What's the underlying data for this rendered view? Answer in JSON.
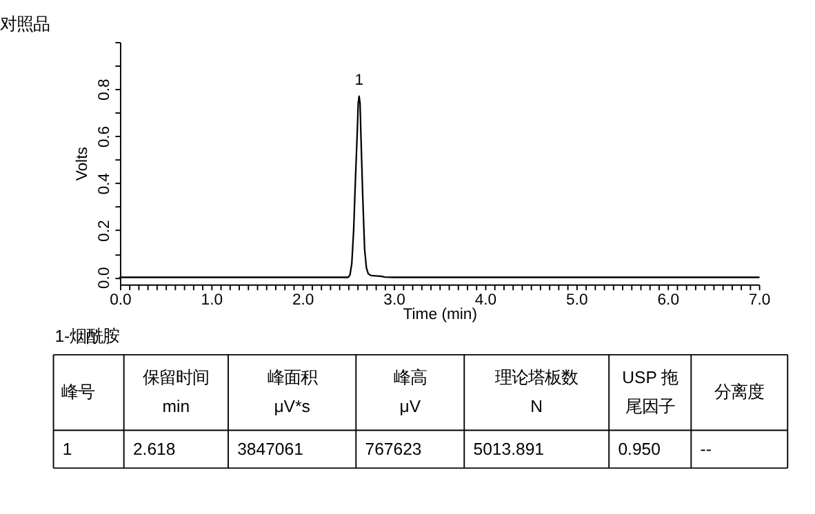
{
  "chart_data": {
    "type": "line",
    "title": "对照品",
    "xlabel": "Time (min)",
    "ylabel": "Volts",
    "x": [
      0,
      1.0,
      2.0,
      2.5,
      2.52,
      2.54,
      2.56,
      2.58,
      2.6,
      2.61,
      2.62,
      2.63,
      2.64,
      2.66,
      2.68,
      2.7,
      2.72,
      2.75,
      2.8,
      2.87,
      2.9,
      3.0,
      4.0,
      5.0,
      6.0,
      7.0
    ],
    "series": [
      {
        "color": "#000000",
        "values": [
          0,
          0,
          0,
          0,
          0.01,
          0.06,
          0.2,
          0.42,
          0.62,
          0.74,
          0.77,
          0.74,
          0.6,
          0.34,
          0.12,
          0.04,
          0.015,
          0.008,
          0.006,
          0.004,
          0.001,
          0,
          0,
          0,
          0,
          0
        ]
      }
    ],
    "xlim": [
      0,
      7.0
    ],
    "ylim": [
      -0.03,
      1.0
    ],
    "xticks": [
      {
        "value": 0,
        "label": "0.0"
      },
      {
        "value": 0.1,
        "label": null
      },
      {
        "value": 0.2,
        "label": null
      },
      {
        "value": 0.3,
        "label": null
      },
      {
        "value": 0.4,
        "label": null
      },
      {
        "value": 0.5,
        "label": null
      },
      {
        "value": 0.6,
        "label": null
      },
      {
        "value": 0.7,
        "label": null
      },
      {
        "value": 0.8,
        "label": null
      },
      {
        "value": 0.9,
        "label": null
      },
      {
        "value": 1,
        "label": "1.0"
      },
      {
        "value": 1.1,
        "label": null
      },
      {
        "value": 1.2,
        "label": null
      },
      {
        "value": 1.3,
        "label": null
      },
      {
        "value": 1.4,
        "label": null
      },
      {
        "value": 1.5,
        "label": null
      },
      {
        "value": 1.6,
        "label": null
      },
      {
        "value": 1.7,
        "label": null
      },
      {
        "value": 1.8,
        "label": null
      },
      {
        "value": 1.9,
        "label": null
      },
      {
        "value": 2,
        "label": "2.0"
      },
      {
        "value": 2.1,
        "label": null
      },
      {
        "value": 2.2,
        "label": null
      },
      {
        "value": 2.3,
        "label": null
      },
      {
        "value": 2.4,
        "label": null
      },
      {
        "value": 2.5,
        "label": null
      },
      {
        "value": 2.6,
        "label": null
      },
      {
        "value": 2.7,
        "label": null
      },
      {
        "value": 2.8,
        "label": null
      },
      {
        "value": 2.9,
        "label": null
      },
      {
        "value": 3,
        "label": "3.0"
      },
      {
        "value": 3.1,
        "label": null
      },
      {
        "value": 3.2,
        "label": null
      },
      {
        "value": 3.3,
        "label": null
      },
      {
        "value": 3.4,
        "label": null
      },
      {
        "value": 3.5,
        "label": null
      },
      {
        "value": 3.6,
        "label": null
      },
      {
        "value": 3.7,
        "label": null
      },
      {
        "value": 3.8,
        "label": null
      },
      {
        "value": 3.9,
        "label": null
      },
      {
        "value": 4,
        "label": "4.0"
      },
      {
        "value": 4.1,
        "label": null
      },
      {
        "value": 4.2,
        "label": null
      },
      {
        "value": 4.3,
        "label": null
      },
      {
        "value": 4.4,
        "label": null
      },
      {
        "value": 4.5,
        "label": null
      },
      {
        "value": 4.6,
        "label": null
      },
      {
        "value": 4.7,
        "label": null
      },
      {
        "value": 4.8,
        "label": null
      },
      {
        "value": 4.9,
        "label": null
      },
      {
        "value": 5,
        "label": "5.0"
      },
      {
        "value": 5.1,
        "label": null
      },
      {
        "value": 5.2,
        "label": null
      },
      {
        "value": 5.3,
        "label": null
      },
      {
        "value": 5.4,
        "label": null
      },
      {
        "value": 5.5,
        "label": null
      },
      {
        "value": 5.6,
        "label": null
      },
      {
        "value": 5.7,
        "label": null
      },
      {
        "value": 5.8,
        "label": null
      },
      {
        "value": 5.9,
        "label": null
      },
      {
        "value": 6,
        "label": "6.0"
      },
      {
        "value": 6.1,
        "label": null
      },
      {
        "value": 6.2,
        "label": null
      },
      {
        "value": 6.3,
        "label": null
      },
      {
        "value": 6.4,
        "label": null
      },
      {
        "value": 6.5,
        "label": null
      },
      {
        "value": 6.6,
        "label": null
      },
      {
        "value": 6.7,
        "label": null
      },
      {
        "value": 6.8,
        "label": null
      },
      {
        "value": 6.9,
        "label": null
      },
      {
        "value": 7,
        "label": "7.0"
      }
    ],
    "yticks": [
      {
        "value": 0,
        "label": "0.0"
      },
      {
        "value": 0.1,
        "label": null
      },
      {
        "value": 0.2,
        "label": "0.2"
      },
      {
        "value": 0.3,
        "label": null
      },
      {
        "value": 0.4,
        "label": "0.4"
      },
      {
        "value": 0.5,
        "label": null
      },
      {
        "value": 0.6,
        "label": "0.6"
      },
      {
        "value": 0.7,
        "label": null
      },
      {
        "value": 0.8,
        "label": "0.8"
      },
      {
        "value": 0.9,
        "label": null
      },
      {
        "value": 1.0,
        "label": null
      }
    ],
    "grid": false,
    "marker": "none",
    "line_style": "solid",
    "annotations": [
      {
        "text": "1",
        "x": 2.62,
        "y": 0.77
      },
      "1-烟酰胺",
      "峰号",
      "保留时间\nmin",
      "峰面积\nμV*s",
      "峰高\nμV",
      "理论塔板数\nN",
      "USP 拖尾因子",
      "分离度",
      "1",
      "2.618",
      "3847061",
      "767623",
      "5013.891",
      "0.950",
      "--"
    ]
  }
}
